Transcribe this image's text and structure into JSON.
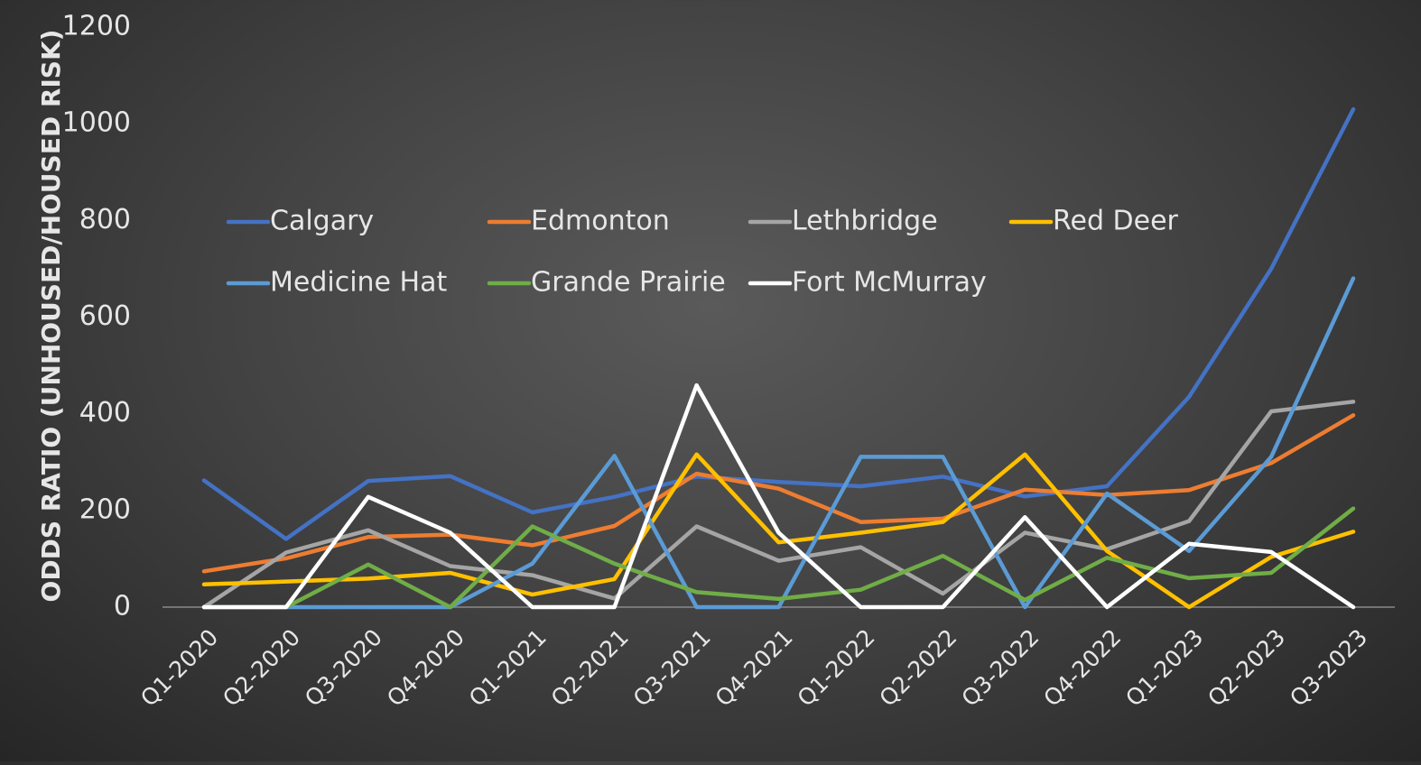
{
  "chart_data": {
    "type": "line",
    "title": "",
    "xlabel": "",
    "ylabel": "ODDS RATIO (UNHOUSED/HOUSED RISK)",
    "ylim": [
      0,
      1200
    ],
    "yticks": [
      "0",
      "200",
      "400",
      "600",
      "800",
      "1000",
      "1200"
    ],
    "ytick_values": [
      0,
      200,
      400,
      600,
      800,
      1000,
      1200
    ],
    "grid": false,
    "legend_position": "inside-upper-left",
    "categories": [
      "Q1-2020",
      "Q2-2020",
      "Q3-2020",
      "Q4-2020",
      "Q1-2021",
      "Q2-2021",
      "Q3-2021",
      "Q4-2021",
      "Q1-2022",
      "Q2-2022",
      "Q3-2022",
      "Q4-2022",
      "Q1-2023",
      "Q2-2023",
      "Q3-2023"
    ],
    "series": [
      {
        "name": "Calgary",
        "color": "#4472C4",
        "values": [
          262,
          141,
          261,
          271,
          196,
          228,
          270,
          259,
          250,
          270,
          229,
          250,
          435,
          700,
          1030
        ]
      },
      {
        "name": "Edmonton",
        "color": "#ED7D31",
        "values": [
          74,
          101,
          145,
          150,
          128,
          168,
          276,
          245,
          176,
          183,
          243,
          232,
          242,
          298,
          397
        ]
      },
      {
        "name": "Lethbridge",
        "color": "#A5A5A5",
        "values": [
          0,
          113,
          159,
          85,
          66,
          18,
          167,
          96,
          124,
          28,
          154,
          120,
          178,
          405,
          425
        ]
      },
      {
        "name": "Red Deer",
        "color": "#FFC000",
        "values": [
          47,
          53,
          59,
          71,
          26,
          58,
          316,
          134,
          154,
          176,
          316,
          116,
          0,
          104,
          156
        ]
      },
      {
        "name": "Medicine Hat",
        "color": "#5B9BD5",
        "values": [
          0,
          0,
          0,
          0,
          90,
          313,
          0,
          0,
          311,
          311,
          0,
          235,
          116,
          311,
          680
        ]
      },
      {
        "name": "Grande Prairie",
        "color": "#70AD47",
        "values": [
          0,
          0,
          88,
          0,
          167,
          90,
          31,
          17,
          36,
          106,
          15,
          102,
          60,
          71,
          204
        ]
      },
      {
        "name": "Fort McMurray",
        "color": "#FFFFFF",
        "values": [
          0,
          0,
          228,
          154,
          0,
          0,
          459,
          154,
          0,
          0,
          186,
          0,
          131,
          114,
          0
        ]
      }
    ]
  }
}
